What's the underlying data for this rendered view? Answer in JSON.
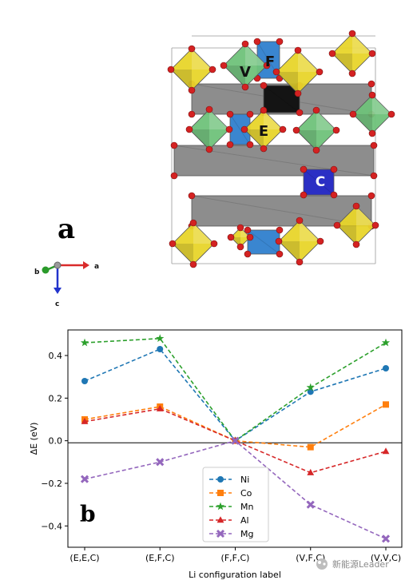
{
  "panel_a": {
    "label": "a",
    "polyhedra_labels": {
      "v": "V",
      "f": "F",
      "e": "E",
      "c": "C"
    },
    "axes": {
      "a": "a",
      "b": "b",
      "c": "c"
    },
    "colors": {
      "yellow": "#e8d52a",
      "green": "#6fc27a",
      "blue": "#3a86d0",
      "dark_blue": "#2b2fc4",
      "grey": "#8d8d8d",
      "black": "#141414",
      "oxygen": "#d42222"
    }
  },
  "panel_b": {
    "label": "b"
  },
  "watermark": "新能源Leader",
  "chart_data": {
    "type": "line",
    "categories": [
      "(E,E,C)",
      "(E,F,C)",
      "(F,F,C)",
      "(V,F,C)",
      "(V,V,C)"
    ],
    "xlabel": "Li configuration label",
    "ylabel": "ΔE (eV)",
    "ylim": [
      -0.5,
      0.52
    ],
    "yticks": [
      "0.4",
      "0.2",
      "0.0",
      "−0.2",
      "−0.4"
    ],
    "legend_position": "lower-center",
    "series": [
      {
        "name": "Ni",
        "values": [
          0.28,
          0.43,
          0.0,
          0.23,
          0.34
        ],
        "color": "#1f77b4",
        "marker": "circle"
      },
      {
        "name": "Co",
        "values": [
          0.1,
          0.16,
          0.0,
          -0.03,
          0.17
        ],
        "color": "#ff7f0e",
        "marker": "square"
      },
      {
        "name": "Mn",
        "values": [
          0.46,
          0.48,
          0.0,
          0.25,
          0.46
        ],
        "color": "#2ca02c",
        "marker": "star"
      },
      {
        "name": "Al",
        "values": [
          0.09,
          0.15,
          0.0,
          -0.15,
          -0.05
        ],
        "color": "#d62728",
        "marker": "triangle"
      },
      {
        "name": "Mg",
        "values": [
          -0.18,
          -0.1,
          0.0,
          -0.3,
          -0.46
        ],
        "color": "#9467bd",
        "marker": "x"
      }
    ]
  }
}
